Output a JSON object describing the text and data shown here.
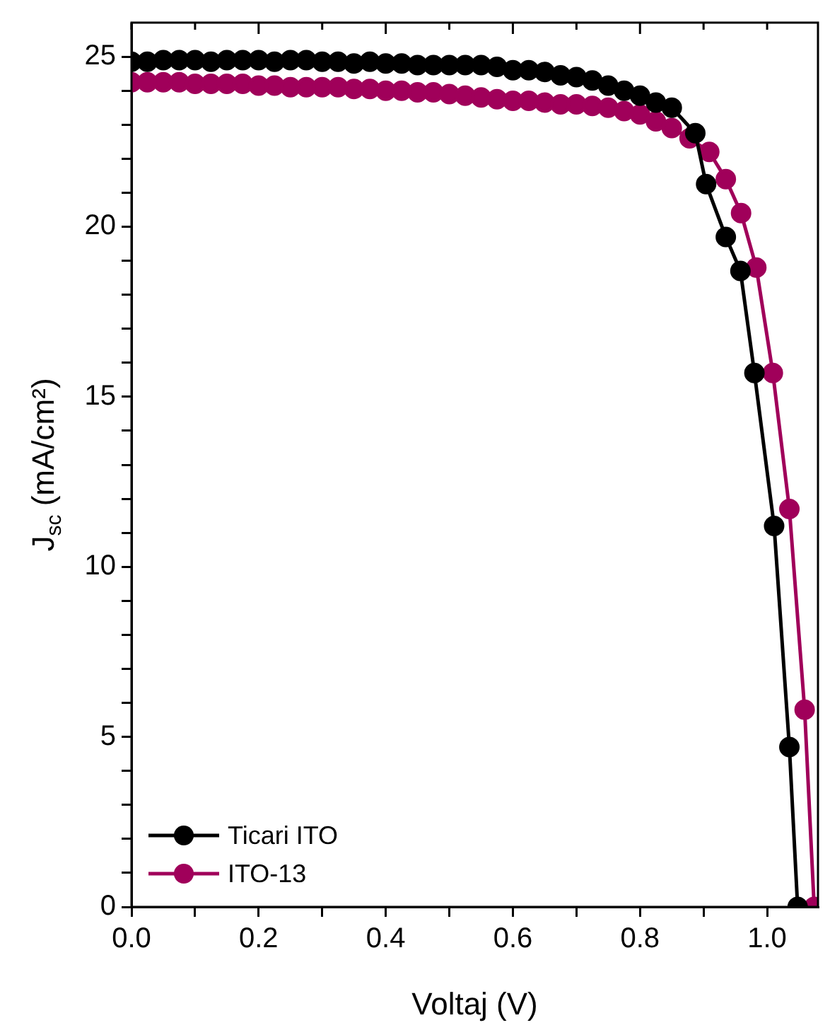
{
  "chart_data": {
    "type": "line",
    "xlabel": "Voltaj (V)",
    "ylabel": "J$_{sc}$ (mA/cm²)",
    "xlim": [
      0,
      1.08
    ],
    "ylim": [
      0,
      26
    ],
    "xticks": [
      {
        "value": 0,
        "label": "0.0"
      },
      {
        "value": 0.1,
        "label": null
      },
      0.2,
      {
        "value": 0.3,
        "label": null
      },
      0.4,
      {
        "value": 0.5,
        "label": null
      },
      0.6,
      {
        "value": 0.7,
        "label": null
      },
      0.8,
      {
        "value": 0.9,
        "label": null
      },
      {
        "value": 1.0,
        "label": "1.0"
      }
    ],
    "yticks": [
      0,
      {
        "value": 1,
        "label": null
      },
      {
        "value": 2,
        "label": null
      },
      {
        "value": 3,
        "label": null
      },
      {
        "value": 4,
        "label": null
      },
      5,
      {
        "value": 6,
        "label": null
      },
      {
        "value": 7,
        "label": null
      },
      {
        "value": 8,
        "label": null
      },
      {
        "value": 9,
        "label": null
      },
      10,
      {
        "value": 11,
        "label": null
      },
      {
        "value": 12,
        "label": null
      },
      {
        "value": 13,
        "label": null
      },
      {
        "value": 14,
        "label": null
      },
      15,
      {
        "value": 16,
        "label": null
      },
      {
        "value": 17,
        "label": null
      },
      {
        "value": 18,
        "label": null
      },
      {
        "value": 19,
        "label": null
      },
      20,
      {
        "value": 21,
        "label": null
      },
      {
        "value": 22,
        "label": null
      },
      {
        "value": 23,
        "label": null
      },
      {
        "value": 24,
        "label": null
      },
      25
    ],
    "grid": false,
    "legend": "bottom left",
    "marker": "circle",
    "line_style": "solid",
    "series": [
      {
        "name": "Ticari ITO",
        "color": "#000000",
        "x": [
          0,
          0.025,
          0.05,
          0.075,
          0.1,
          0.125,
          0.15,
          0.175,
          0.2,
          0.225,
          0.25,
          0.275,
          0.3,
          0.325,
          0.35,
          0.375,
          0.4,
          0.425,
          0.45,
          0.475,
          0.5,
          0.525,
          0.55,
          0.575,
          0.6,
          0.625,
          0.65,
          0.675,
          0.7,
          0.725,
          0.75,
          0.775,
          0.8,
          0.825,
          0.85,
          0.887,
          0.904,
          0.935,
          0.958,
          0.98,
          1.011,
          1.035,
          1.048
        ],
        "values": [
          24.85,
          24.85,
          24.9,
          24.9,
          24.9,
          24.85,
          24.9,
          24.9,
          24.9,
          24.85,
          24.9,
          24.9,
          24.85,
          24.85,
          24.8,
          24.85,
          24.8,
          24.8,
          24.75,
          24.75,
          24.75,
          24.75,
          24.75,
          24.7,
          24.6,
          24.6,
          24.55,
          24.45,
          24.4,
          24.3,
          24.15,
          24.0,
          23.85,
          23.65,
          23.5,
          22.75,
          21.25,
          19.7,
          18.7,
          15.7,
          11.2,
          4.7,
          0
        ]
      },
      {
        "name": "ITO-13",
        "color": "#a0005a",
        "x": [
          0,
          0.025,
          0.05,
          0.075,
          0.1,
          0.125,
          0.15,
          0.175,
          0.2,
          0.225,
          0.25,
          0.275,
          0.3,
          0.325,
          0.35,
          0.375,
          0.4,
          0.425,
          0.45,
          0.475,
          0.5,
          0.525,
          0.55,
          0.575,
          0.6,
          0.625,
          0.65,
          0.675,
          0.7,
          0.725,
          0.75,
          0.775,
          0.8,
          0.825,
          0.85,
          0.878,
          0.909,
          0.935,
          0.959,
          0.983,
          1.009,
          1.035,
          1.059,
          1.074
        ],
        "values": [
          24.25,
          24.25,
          24.25,
          24.25,
          24.2,
          24.2,
          24.2,
          24.2,
          24.15,
          24.15,
          24.1,
          24.1,
          24.1,
          24.1,
          24.05,
          24.05,
          24.0,
          24.0,
          23.95,
          23.95,
          23.9,
          23.85,
          23.8,
          23.75,
          23.7,
          23.7,
          23.65,
          23.6,
          23.6,
          23.55,
          23.5,
          23.4,
          23.3,
          23.1,
          22.9,
          22.6,
          22.2,
          21.4,
          20.4,
          18.8,
          15.7,
          11.7,
          5.8,
          0
        ]
      }
    ]
  }
}
